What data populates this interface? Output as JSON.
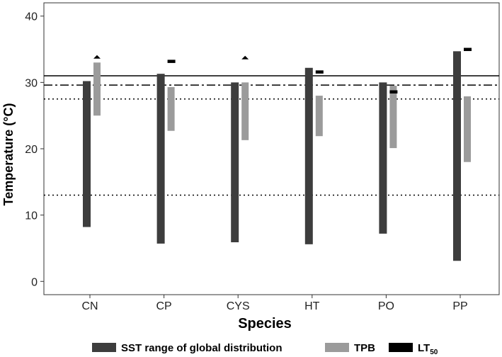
{
  "chart_data": {
    "type": "bar",
    "xlabel": "Species",
    "ylabel": "Temperature (°C)",
    "ylim": [
      -2,
      42
    ],
    "yticks": [
      0,
      10,
      20,
      30,
      40
    ],
    "categories": [
      "CN",
      "CP",
      "CYS",
      "HT",
      "PO",
      "PP"
    ],
    "series": [
      {
        "name": "SST range of global distribution",
        "kind": "range",
        "color": "#3d3d3d",
        "values": [
          [
            8.2,
            30.2
          ],
          [
            5.7,
            31.3
          ],
          [
            5.9,
            30.0
          ],
          [
            5.6,
            32.2
          ],
          [
            7.2,
            30.0
          ],
          [
            3.1,
            34.7
          ]
        ]
      },
      {
        "name": "TPB",
        "kind": "range",
        "color": "#9b9b9b",
        "values": [
          [
            25.0,
            33.0
          ],
          [
            22.7,
            29.3
          ],
          [
            21.3,
            30.0
          ],
          [
            21.9,
            28.0
          ],
          [
            20.1,
            29.5
          ],
          [
            18.0,
            27.9
          ]
        ]
      },
      {
        "name": "LT50",
        "kind": "marker",
        "color": "#000000",
        "values": [
          33.8,
          33.2,
          33.7,
          31.6,
          28.6,
          35.0
        ],
        "shapes": [
          "triangle",
          "bar",
          "triangle",
          "bar",
          "bar",
          "bar"
        ]
      }
    ],
    "reference_lines": [
      {
        "y": 31.0,
        "style": "solid"
      },
      {
        "y": 29.6,
        "style": "dashdot"
      },
      {
        "y": 27.5,
        "style": "dotted"
      },
      {
        "y": 13.0,
        "style": "dotted"
      }
    ],
    "legend": {
      "placement": "bottom",
      "items": [
        {
          "label": "SST range of global distribution",
          "color": "#3d3d3d",
          "width": "wide"
        },
        {
          "label": "TPB",
          "color": "#9b9b9b",
          "width": "wide"
        },
        {
          "label": "LT",
          "subscript": "50",
          "color": "#000000",
          "width": "wide"
        }
      ]
    },
    "grid": false
  }
}
